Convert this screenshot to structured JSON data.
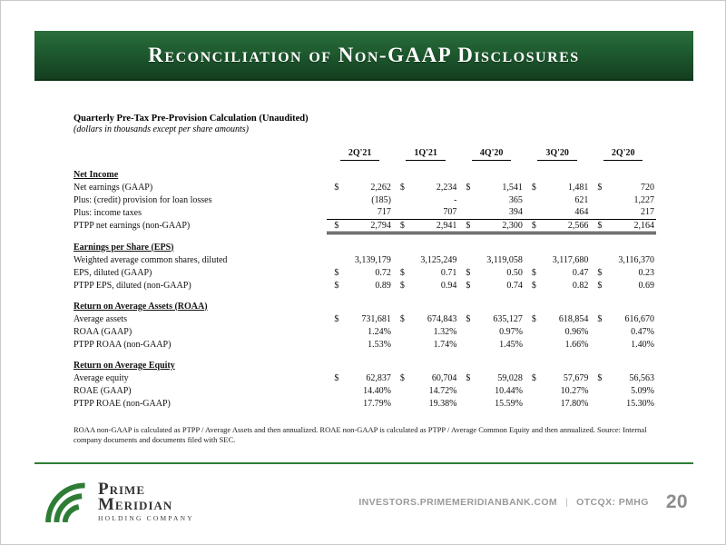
{
  "slide": {
    "title": "Reconciliation of Non-GAAP Disclosures",
    "page_number": "20"
  },
  "table": {
    "heading": "Quarterly Pre-Tax Pre-Provision Calculation (Unaudited)",
    "subheading": "(dollars in thousands except per share amounts)",
    "columns": [
      "2Q'21",
      "1Q'21",
      "4Q'20",
      "3Q'20",
      "2Q'20"
    ],
    "sections": [
      {
        "title": "Net Income",
        "rows": [
          {
            "label": "Net earnings (GAAP)",
            "dollar": true,
            "total": false,
            "values": [
              "2,262",
              "2,234",
              "1,541",
              "1,481",
              "720"
            ]
          },
          {
            "label": "Plus: (credit) provision for loan losses",
            "dollar": false,
            "total": false,
            "values": [
              "(185)",
              "-",
              "365",
              "621",
              "1,227"
            ]
          },
          {
            "label": "Plus: income taxes",
            "dollar": false,
            "total": false,
            "values": [
              "717",
              "707",
              "394",
              "464",
              "217"
            ]
          },
          {
            "label": "PTPP net earnings (non-GAAP)",
            "dollar": true,
            "total": true,
            "values": [
              "2,794",
              "2,941",
              "2,300",
              "2,566",
              "2,164"
            ]
          }
        ]
      },
      {
        "title": "Earnings per Share (EPS)",
        "rows": [
          {
            "label": "Weighted average common shares, diluted",
            "dollar": false,
            "total": false,
            "values": [
              "3,139,179",
              "3,125,249",
              "3,119,058",
              "3,117,680",
              "3,116,370"
            ]
          },
          {
            "label": "EPS, diluted (GAAP)",
            "dollar": true,
            "total": false,
            "values": [
              "0.72",
              "0.71",
              "0.50",
              "0.47",
              "0.23"
            ]
          },
          {
            "label": "PTPP EPS, diluted (non-GAAP)",
            "dollar": true,
            "total": false,
            "values": [
              "0.89",
              "0.94",
              "0.74",
              "0.82",
              "0.69"
            ]
          }
        ]
      },
      {
        "title": "Return on Average Assets (ROAA)",
        "rows": [
          {
            "label": "Average assets",
            "dollar": true,
            "total": false,
            "values": [
              "731,681",
              "674,843",
              "635,127",
              "618,854",
              "616,670"
            ]
          },
          {
            "label": "ROAA (GAAP)",
            "dollar": false,
            "total": false,
            "values": [
              "1.24%",
              "1.32%",
              "0.97%",
              "0.96%",
              "0.47%"
            ]
          },
          {
            "label": "PTPP ROAA (non-GAAP)",
            "dollar": false,
            "total": false,
            "values": [
              "1.53%",
              "1.74%",
              "1.45%",
              "1.66%",
              "1.40%"
            ]
          }
        ]
      },
      {
        "title": "Return on Average Equity",
        "rows": [
          {
            "label": "Average equity",
            "dollar": true,
            "total": false,
            "values": [
              "62,837",
              "60,704",
              "59,028",
              "57,679",
              "56,563"
            ]
          },
          {
            "label": "ROAE (GAAP)",
            "dollar": false,
            "total": false,
            "values": [
              "14.40%",
              "14.72%",
              "10.44%",
              "10.27%",
              "5.09%"
            ]
          },
          {
            "label": "PTPP ROAE (non-GAAP)",
            "dollar": false,
            "total": false,
            "values": [
              "17.79%",
              "19.38%",
              "15.59%",
              "17.80%",
              "15.30%"
            ]
          }
        ]
      }
    ],
    "footnote": "ROAA non-GAAP is calculated as  PTPP / Average Assets and then annualized. ROAE non-GAAP is calculated as PTPP / Average Common Equity and then annualized. Source: Internal company documents and documents filed with SEC."
  },
  "footer": {
    "website": "INVESTORS.PRIMEMERIDIANBANK.COM",
    "separator": "|",
    "ticker": "OTCQX: PMHG",
    "logo": {
      "name_line1": "Prime",
      "name_line2": "Meridian",
      "tagline": "HOLDING COMPANY"
    }
  },
  "colors": {
    "banner_green": "#1f5c30",
    "accent_green": "#2e7d36",
    "footer_gray": "#9a9a9a"
  }
}
